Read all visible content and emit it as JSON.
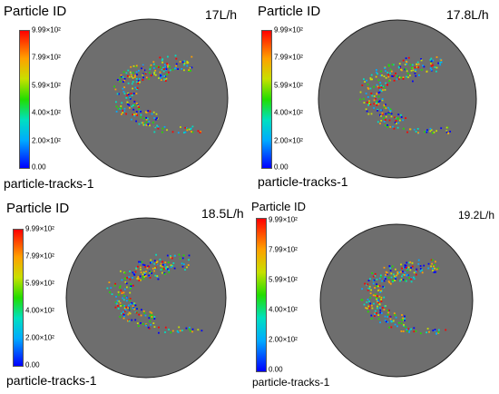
{
  "legend": {
    "title": "Particle ID",
    "ticks": [
      "9.99×10²",
      "7.99×10²",
      "5.99×10²",
      "4.00×10²",
      "2.00×10²",
      "0.00"
    ],
    "label": "particle-tracks-1"
  },
  "panels": [
    {
      "flow": "17L/h"
    },
    {
      "flow": "17.8L/h"
    },
    {
      "flow": "18.5L/h"
    },
    {
      "flow": "19.2L/h"
    }
  ],
  "colors": {
    "domain_fill": "#6e6e6e",
    "domain_stroke": "#202020",
    "colormap": [
      "#0000ff",
      "#00aaff",
      "#00e0c0",
      "#22dd00",
      "#c8e000",
      "#ffa000",
      "#ff0000"
    ]
  }
}
